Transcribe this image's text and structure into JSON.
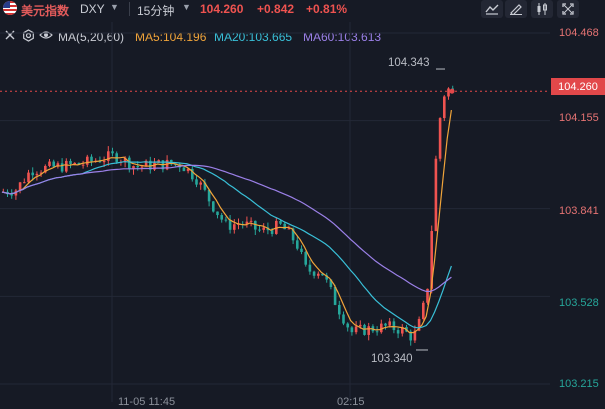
{
  "symbol": {
    "name": "美元指数",
    "code": "DXY",
    "interval": "15分钟"
  },
  "quote": {
    "price": "104.260",
    "change": "+0.842",
    "percent": "+0.81%"
  },
  "toolbar_icons": [
    "line-style-icon",
    "draw-icon",
    "indicator-icon",
    "fullscreen-icon"
  ],
  "indicators": {
    "settings": "MA(5,20,60)",
    "ma5": "MA5:104.196",
    "ma20": "MA20:103.665",
    "ma60": "MA60:103.613"
  },
  "price_axis": {
    "labels": [
      "104.468",
      "104.155",
      "103.841",
      "103.528",
      "103.215"
    ],
    "current": "104.260"
  },
  "time_axis": {
    "labels": [
      "11-05 11:45",
      "02:15"
    ]
  },
  "annotations": {
    "high": "104.343",
    "low": "103.340"
  },
  "colors": {
    "up": "#ef5350",
    "down": "#26a69a",
    "ma5": "#f0a43a",
    "ma20": "#39c0d8",
    "ma60": "#9b80e8",
    "background": "#161a25"
  },
  "chart_data": {
    "type": "candlestick",
    "interval": "15分钟",
    "ylim": [
      103.215,
      104.468
    ],
    "high": 104.343,
    "low": 103.34,
    "last": 104.26,
    "ma": [
      {
        "name": "MA5",
        "value": 104.196
      },
      {
        "name": "MA20",
        "value": 103.665
      },
      {
        "name": "MA60",
        "value": 103.613
      }
    ]
  }
}
